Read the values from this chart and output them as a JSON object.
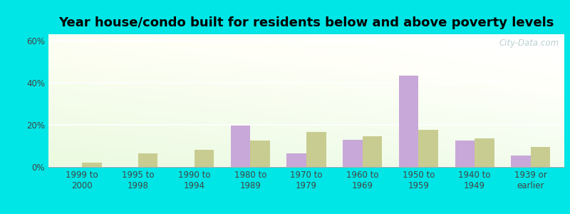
{
  "title": "Year house/condo built for residents below and above poverty levels",
  "categories": [
    "1999 to\n2000",
    "1995 to\n1998",
    "1990 to\n1994",
    "1980 to\n1989",
    "1970 to\n1979",
    "1960 to\n1969",
    "1950 to\n1959",
    "1940 to\n1949",
    "1939 or\nearlier"
  ],
  "below_poverty": [
    0.0,
    0.0,
    0.0,
    19.5,
    6.5,
    13.0,
    43.5,
    12.5,
    5.5
  ],
  "above_poverty": [
    2.0,
    6.5,
    8.0,
    12.5,
    16.5,
    14.5,
    17.5,
    13.5,
    9.5
  ],
  "below_color": "#c8a8d8",
  "above_color": "#c8cc90",
  "bg_outer": "#00e5e5",
  "ylim": [
    0,
    63
  ],
  "yticks": [
    0,
    20,
    40,
    60
  ],
  "yticklabels": [
    "0%",
    "20%",
    "40%",
    "60%"
  ],
  "title_fontsize": 13,
  "tick_fontsize": 8.5,
  "legend_fontsize": 9.5,
  "bar_width": 0.35,
  "watermark": "City-Data.com"
}
